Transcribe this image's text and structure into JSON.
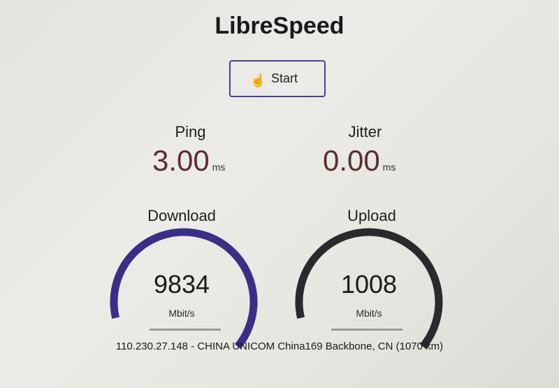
{
  "app": {
    "title": "LibreSpeed"
  },
  "start_button": {
    "label": "Start",
    "cursor_icon": "hand-pointer-icon"
  },
  "ping": {
    "label": "Ping",
    "value": "3.00",
    "unit": "ms"
  },
  "jitter": {
    "label": "Jitter",
    "value": "0.00",
    "unit": "ms"
  },
  "download": {
    "label": "Download",
    "value": "9834",
    "unit": "Mbit/s",
    "gauge_fill": 1.0,
    "color": "#3a2f86"
  },
  "upload": {
    "label": "Upload",
    "value": "1008",
    "unit": "Mbit/s",
    "gauge_fill": 1.0,
    "color": "#2a2a2e"
  },
  "server": {
    "info": "110.230.27.148 - CHINA UNICOM China169 Backbone, CN (1070 km)"
  }
}
